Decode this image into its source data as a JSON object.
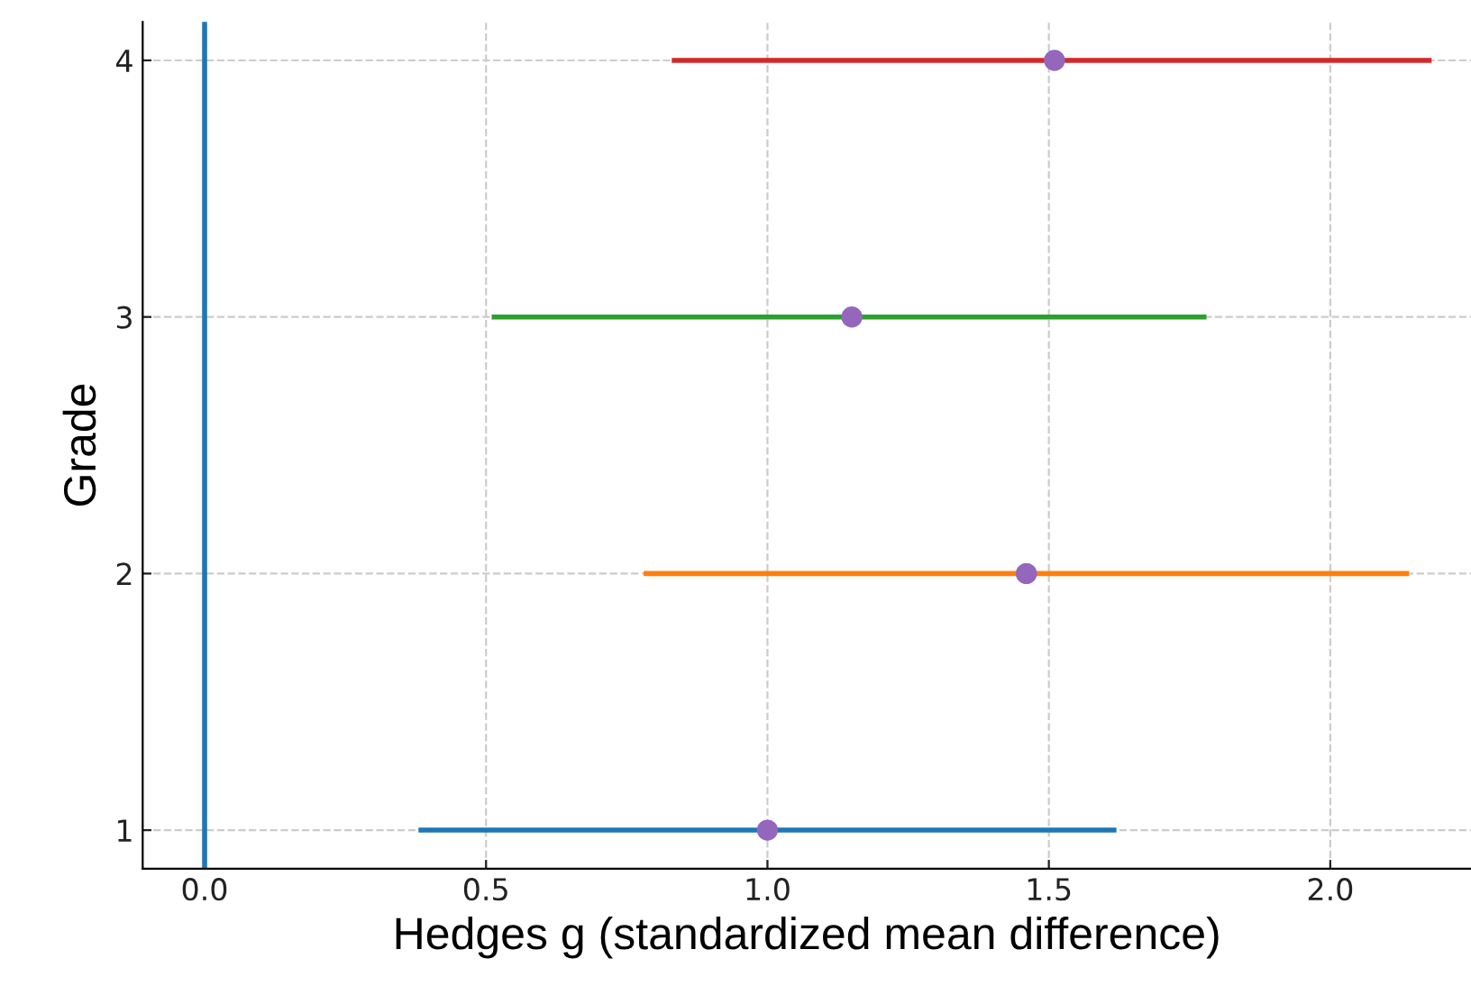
{
  "chart_data": {
    "type": "line",
    "xlabel": "Hedges g (standardized mean difference)",
    "ylabel": "Grade",
    "series": [
      {
        "color": "#1f77b4",
        "x": [
          0.38,
          1.62
        ],
        "values": [
          1,
          1
        ],
        "marker": "none"
      },
      {
        "color": "#ff7f0e",
        "x": [
          0.78,
          2.14
        ],
        "values": [
          2,
          2
        ],
        "marker": "none"
      },
      {
        "color": "#2ca02c",
        "x": [
          0.51,
          1.78
        ],
        "values": [
          3,
          3
        ],
        "marker": "none"
      },
      {
        "color": "#d62728",
        "x": [
          0.83,
          2.18
        ],
        "values": [
          4,
          4
        ],
        "marker": "none"
      },
      {
        "type": "scatter",
        "color": "#9467bd",
        "x": [
          1.0,
          1.46,
          1.15,
          1.51
        ],
        "values": [
          1,
          2,
          3,
          4
        ],
        "marker": "circle"
      }
    ],
    "ref_lines": [
      {
        "axis": "x",
        "value": 0,
        "color": "#1f77b4"
      }
    ],
    "xlim": [
      -0.11,
      2.25
    ],
    "ylim": [
      0.85,
      4.15
    ],
    "xticks": [
      {
        "value": 0,
        "label": "0.0"
      },
      0.5,
      {
        "value": 1,
        "label": "1.0"
      },
      1.5,
      {
        "value": 2,
        "label": "2.0"
      }
    ],
    "yticks": [
      1,
      2,
      3,
      4
    ],
    "grid": true
  }
}
